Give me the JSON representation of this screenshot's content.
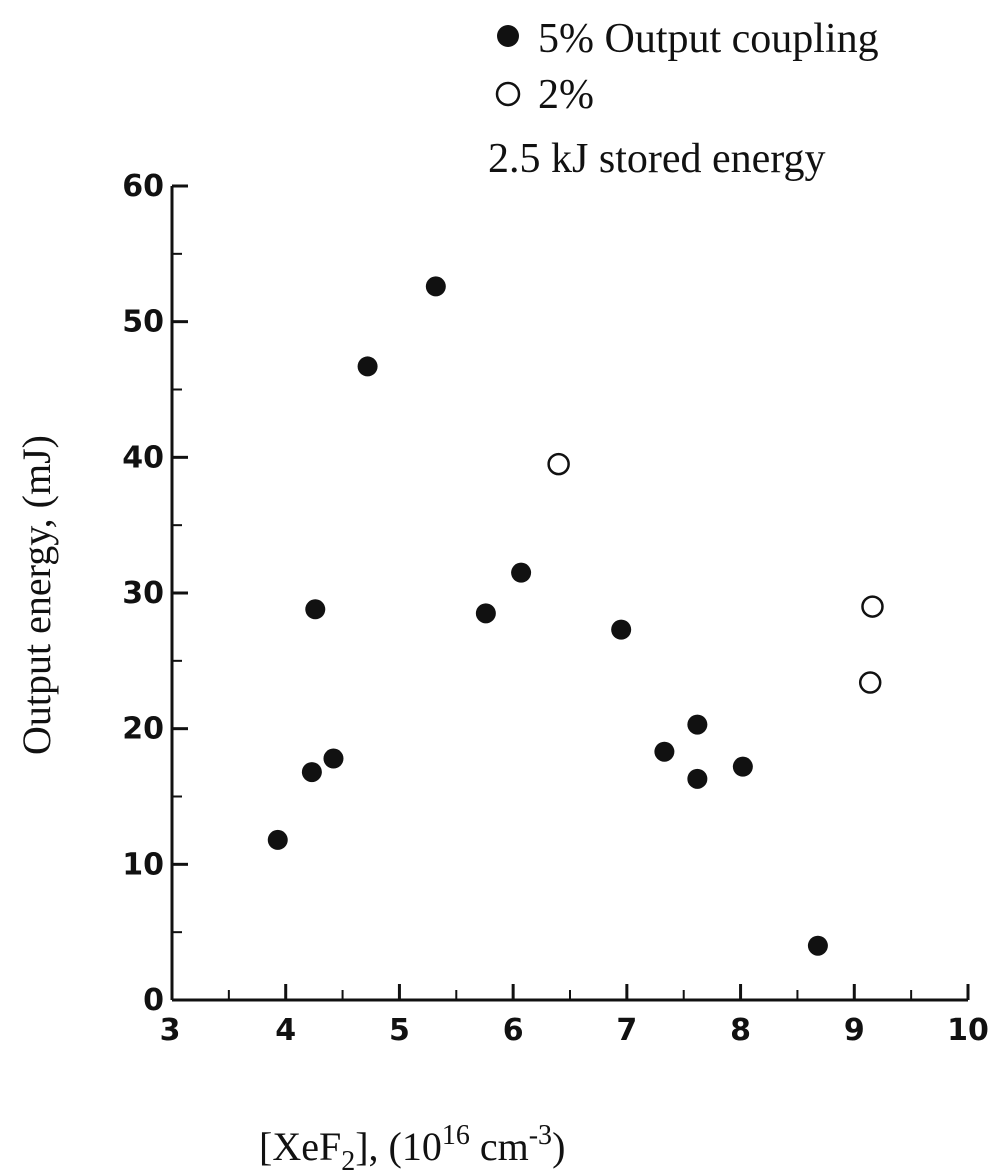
{
  "chart_data": {
    "type": "scatter",
    "xlabel": "[XeF2], (10^16 cm^-3)",
    "xlabel_parts": {
      "pre": "[XeF",
      "sub": "2",
      "mid": "], (10",
      "sup1": "16",
      "unit": " cm",
      "sup2": "-3",
      "post": ")"
    },
    "ylabel": "Output energy, (mJ)",
    "xlim": [
      3,
      10
    ],
    "ylim": [
      0,
      60
    ],
    "x_ticks": [
      3,
      4,
      5,
      6,
      7,
      8,
      9,
      10
    ],
    "x_tick_labels": [
      "3",
      "4",
      "5",
      "6",
      "7",
      "8",
      "9",
      "10"
    ],
    "y_ticks": [
      0,
      10,
      20,
      30,
      40,
      50,
      60
    ],
    "y_tick_labels": [
      "0",
      "10",
      "20",
      "30",
      "40",
      "50",
      "60"
    ],
    "grid": false,
    "legend_position": "top-right",
    "annotation": "2.5 kJ stored energy",
    "series": [
      {
        "name": "5% Output coupling",
        "marker": "filled-circle",
        "color": "#111111",
        "points": [
          {
            "x": 3.93,
            "y": 11.8
          },
          {
            "x": 4.23,
            "y": 16.8
          },
          {
            "x": 4.26,
            "y": 28.8
          },
          {
            "x": 4.42,
            "y": 17.8
          },
          {
            "x": 4.72,
            "y": 46.7
          },
          {
            "x": 5.32,
            "y": 52.6
          },
          {
            "x": 5.76,
            "y": 28.5
          },
          {
            "x": 6.07,
            "y": 31.5
          },
          {
            "x": 6.95,
            "y": 27.3
          },
          {
            "x": 7.33,
            "y": 18.3
          },
          {
            "x": 7.62,
            "y": 20.3
          },
          {
            "x": 7.62,
            "y": 16.3
          },
          {
            "x": 8.02,
            "y": 17.2
          },
          {
            "x": 8.68,
            "y": 4.0
          }
        ]
      },
      {
        "name": "2%",
        "marker": "open-circle",
        "color": "#111111",
        "points": [
          {
            "x": 6.4,
            "y": 39.5
          },
          {
            "x": 9.16,
            "y": 29.0
          },
          {
            "x": 9.14,
            "y": 23.4
          }
        ]
      }
    ]
  }
}
